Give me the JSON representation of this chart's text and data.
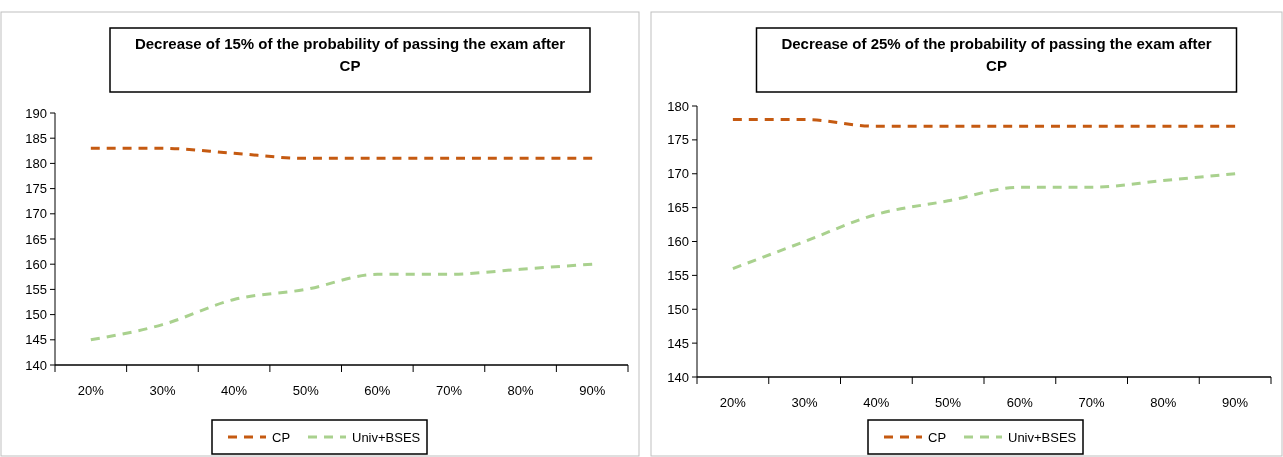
{
  "chart_data": [
    {
      "type": "line",
      "title": "Decrease of 15% of the probability of passing the exam after CP",
      "categories": [
        "20%",
        "30%",
        "40%",
        "50%",
        "60%",
        "70%",
        "80%",
        "90%"
      ],
      "series": [
        {
          "name": "CP",
          "color": "#c55a11",
          "values": [
            183,
            183,
            182,
            181,
            181,
            181,
            181,
            181
          ]
        },
        {
          "name": "Univ+BSES",
          "color": "#a9d18e",
          "values": [
            145,
            148,
            153,
            155,
            158,
            158,
            159,
            160
          ]
        }
      ],
      "ylim": [
        140,
        190
      ],
      "yticks": [
        140,
        145,
        150,
        155,
        160,
        165,
        170,
        175,
        180,
        185,
        190
      ],
      "legend": "bottom",
      "line_style": "dashed",
      "marker": "none",
      "grid": false
    },
    {
      "type": "line",
      "title": "Decrease of 25% of the probability of passing the exam after CP",
      "categories": [
        "20%",
        "30%",
        "40%",
        "50%",
        "60%",
        "70%",
        "80%",
        "90%"
      ],
      "series": [
        {
          "name": "CP",
          "color": "#c55a11",
          "values": [
            178,
            178,
            177,
            177,
            177,
            177,
            177,
            177
          ]
        },
        {
          "name": "Univ+BSES",
          "color": "#a9d18e",
          "values": [
            156,
            160,
            164,
            166,
            168,
            168,
            169,
            170
          ]
        }
      ],
      "ylim": [
        140,
        180
      ],
      "yticks": [
        140,
        145,
        150,
        155,
        160,
        165,
        170,
        175,
        180
      ],
      "legend": "bottom",
      "line_style": "dashed",
      "marker": "none",
      "grid": false
    }
  ]
}
